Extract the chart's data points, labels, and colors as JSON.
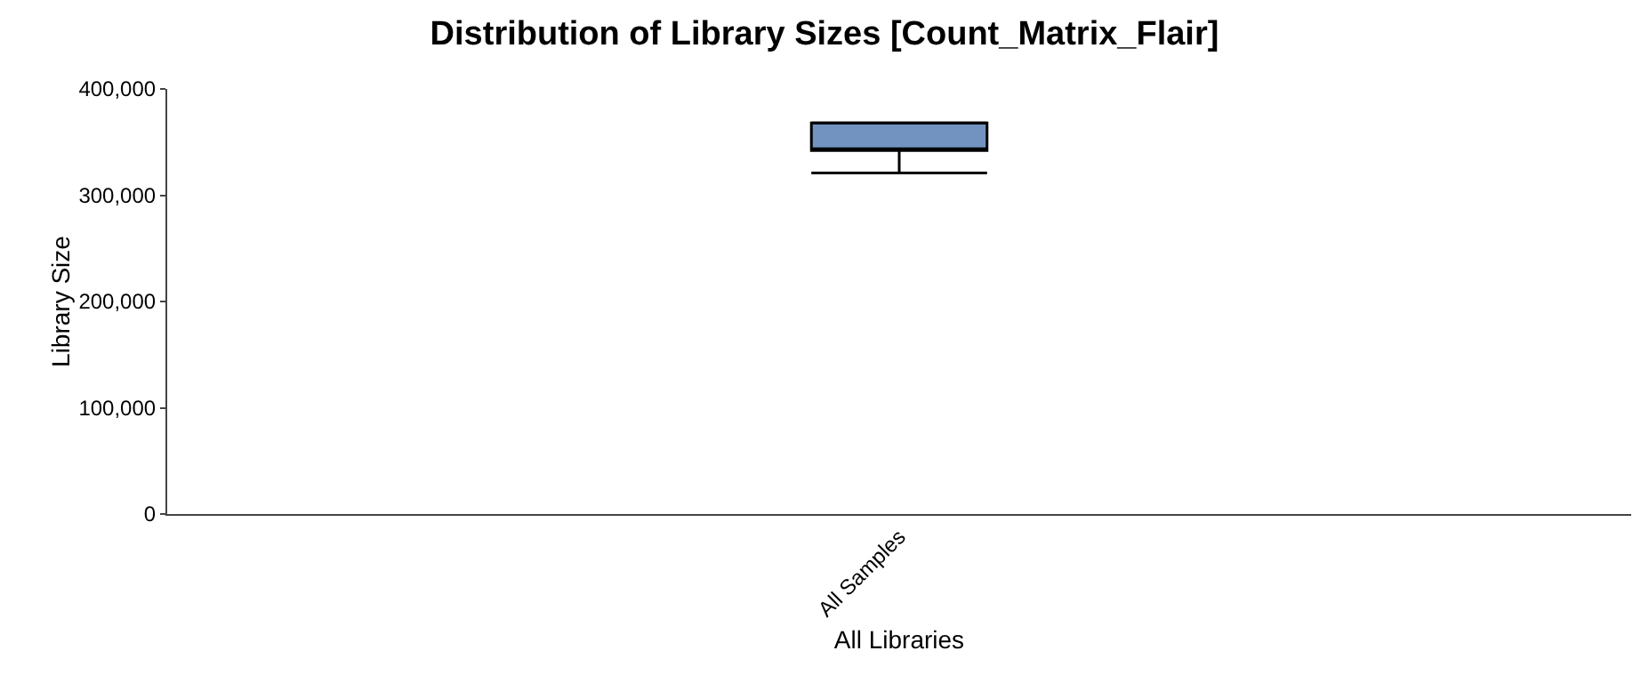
{
  "chart_data": {
    "type": "box",
    "title": "Distribution of Library Sizes [Count_Matrix_Flair]",
    "xlabel": "All Libraries",
    "ylabel": "Library Size",
    "categories": [
      "All Samples"
    ],
    "color": "#7293bf",
    "boxes": [
      {
        "low": 321000,
        "q1": 342000,
        "median": 343000,
        "q3": 368000,
        "high": 368000
      }
    ],
    "ylim": [
      0,
      400000
    ],
    "yticks": [
      {
        "value": 0,
        "label": "0"
      },
      {
        "value": 100000,
        "label": "100,000"
      },
      {
        "value": 200000,
        "label": "200,000"
      },
      {
        "value": 300000,
        "label": "300,000"
      },
      {
        "value": 400000,
        "label": "400,000"
      }
    ],
    "grid": false,
    "legend": false
  }
}
